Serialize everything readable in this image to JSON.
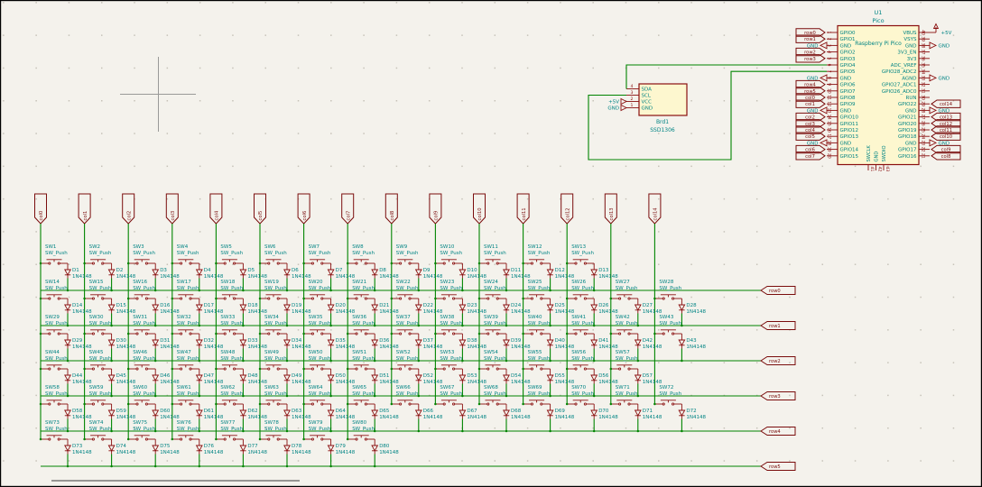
{
  "colors": {
    "wire": "#008400",
    "symbol_outline": "#8a0f0f",
    "field_text": "#008484",
    "label_text": "#7a0d0d",
    "body_fill": "#fdf7cf",
    "background": "#f4f2ec",
    "grid_dot": "#c6c2b8"
  },
  "pico": {
    "reference": "U1",
    "value": "Pico",
    "name": "Raspberry Pi Pico",
    "left_pins": [
      {
        "num": "1",
        "name": "GPIO0",
        "label": "row0",
        "ltype": "global"
      },
      {
        "num": "2",
        "name": "GPIO1",
        "label": "row1",
        "ltype": "global"
      },
      {
        "num": "3",
        "name": "GND",
        "label": "GND",
        "ltype": "power"
      },
      {
        "num": "4",
        "name": "GPIO2",
        "label": "row2",
        "ltype": "global"
      },
      {
        "num": "5",
        "name": "GPIO3",
        "label": "row3",
        "ltype": "global"
      },
      {
        "num": "6",
        "name": "GPIO4",
        "ltype": "wire"
      },
      {
        "num": "7",
        "name": "GPIO5",
        "ltype": "wire"
      },
      {
        "num": "8",
        "name": "GND",
        "label": "GND",
        "ltype": "power"
      },
      {
        "num": "9",
        "name": "GPIO6",
        "label": "row4",
        "ltype": "global"
      },
      {
        "num": "10",
        "name": "GPIO7",
        "label": "row5",
        "ltype": "global"
      },
      {
        "num": "11",
        "name": "GPIO8",
        "label": "col0",
        "ltype": "global"
      },
      {
        "num": "12",
        "name": "GPIO9",
        "label": "col1",
        "ltype": "global"
      },
      {
        "num": "13",
        "name": "GND",
        "label": "GND",
        "ltype": "power"
      },
      {
        "num": "14",
        "name": "GPIO10",
        "label": "col2",
        "ltype": "global"
      },
      {
        "num": "15",
        "name": "GPIO11",
        "label": "col3",
        "ltype": "global"
      },
      {
        "num": "16",
        "name": "GPIO12",
        "label": "col4",
        "ltype": "global"
      },
      {
        "num": "17",
        "name": "GPIO13",
        "label": "col5",
        "ltype": "global"
      },
      {
        "num": "18",
        "name": "GND",
        "label": "GND",
        "ltype": "power"
      },
      {
        "num": "19",
        "name": "GPIO14",
        "label": "col6",
        "ltype": "global"
      },
      {
        "num": "20",
        "name": "GPIO15",
        "label": "col7",
        "ltype": "global"
      }
    ],
    "right_pins": [
      {
        "num": "40",
        "name": "VBUS",
        "label": "+5V",
        "ltype": "power5v"
      },
      {
        "num": "39",
        "name": "VSYS",
        "ltype": "none"
      },
      {
        "num": "38",
        "name": "GND",
        "label": "GND",
        "ltype": "power"
      },
      {
        "num": "37",
        "name": "3V3_EN",
        "ltype": "none"
      },
      {
        "num": "36",
        "name": "3V3",
        "ltype": "none"
      },
      {
        "num": "35",
        "name": "ADC_VREF",
        "ltype": "none"
      },
      {
        "num": "34",
        "name": "GPIO28_ADC2",
        "ltype": "none"
      },
      {
        "num": "33",
        "name": "AGND",
        "label": "GND",
        "ltype": "power"
      },
      {
        "num": "32",
        "name": "GPIO27_ADC1",
        "ltype": "none"
      },
      {
        "num": "31",
        "name": "GPIO26_ADC0",
        "ltype": "none"
      },
      {
        "num": "30",
        "name": "RUN",
        "ltype": "none"
      },
      {
        "num": "29",
        "name": "GPIO22",
        "label": "col14",
        "ltype": "global"
      },
      {
        "num": "28",
        "name": "GND",
        "label": "GND",
        "ltype": "power"
      },
      {
        "num": "27",
        "name": "GPIO21",
        "label": "col13",
        "ltype": "global"
      },
      {
        "num": "26",
        "name": "GPIO20",
        "label": "col12",
        "ltype": "global"
      },
      {
        "num": "25",
        "name": "GPIO19",
        "label": "col11",
        "ltype": "global"
      },
      {
        "num": "24",
        "name": "GPIO18",
        "label": "col10",
        "ltype": "global"
      },
      {
        "num": "23",
        "name": "GND",
        "label": "GND",
        "ltype": "power"
      },
      {
        "num": "22",
        "name": "GPIO17",
        "label": "col9",
        "ltype": "global"
      },
      {
        "num": "21",
        "name": "GPIO16",
        "label": "col8",
        "ltype": "global"
      }
    ],
    "bottom_pins": [
      {
        "num": "41",
        "name": "SWCLK"
      },
      {
        "num": "42",
        "name": "GND"
      },
      {
        "num": "43",
        "name": "SWDIO"
      }
    ]
  },
  "oled": {
    "reference": "Brd1",
    "value": "SSD1306",
    "pins": [
      {
        "num": "4",
        "name": "SDA"
      },
      {
        "num": "3",
        "name": "SCL"
      },
      {
        "num": "2",
        "name": "VCC",
        "label": "+5V"
      },
      {
        "num": "1",
        "name": "GND",
        "label": "GND"
      }
    ]
  },
  "matrix": {
    "column_labels": [
      "col0",
      "col1",
      "col2",
      "col3",
      "col4",
      "col5",
      "col6",
      "col7",
      "col8",
      "col9",
      "col10",
      "col11",
      "col12",
      "col13",
      "col14"
    ],
    "switch_type": "SW_Push",
    "diode_type": "1N4148",
    "rows": [
      {
        "label": "row0",
        "cols_start": 0,
        "switches": [
          "SW1",
          "SW2",
          "SW3",
          "SW4",
          "SW5",
          "SW6",
          "SW7",
          "SW8",
          "SW9",
          "SW10",
          "SW11",
          "SW12",
          "SW13"
        ],
        "diodes": [
          "D1",
          "D2",
          "D3",
          "D4",
          "D5",
          "D6",
          "D7",
          "D8",
          "D9",
          "D10",
          "D11",
          "D12",
          "D13"
        ]
      },
      {
        "label": "row1",
        "cols_start": 0,
        "switches": [
          "SW14",
          "SW15",
          "SW16",
          "SW17",
          "SW18",
          "SW19",
          "SW20",
          "SW21",
          "SW22",
          "SW23",
          "SW24",
          "SW25",
          "SW26",
          "SW27",
          "SW28"
        ],
        "diodes": [
          "D14",
          "D15",
          "D16",
          "D17",
          "D18",
          "D19",
          "D20",
          "D21",
          "D22",
          "D23",
          "D24",
          "D25",
          "D26",
          "D27",
          "D28"
        ]
      },
      {
        "label": "row2",
        "cols_start": 0,
        "switches": [
          "SW29",
          "SW30",
          "SW31",
          "SW32",
          "SW33",
          "SW34",
          "SW35",
          "SW36",
          "SW37",
          "SW38",
          "SW39",
          "SW40",
          "SW41",
          "SW42",
          "SW43"
        ],
        "diodes": [
          "D29",
          "D30",
          "D31",
          "D32",
          "D33",
          "D34",
          "D35",
          "D36",
          "D37",
          "D38",
          "D39",
          "D40",
          "D41",
          "D42",
          "D43"
        ]
      },
      {
        "label": "row3",
        "cols_start": 0,
        "switches": [
          "SW44",
          "SW45",
          "SW46",
          "SW47",
          "SW48",
          "SW49",
          "SW50",
          "SW51",
          "SW52",
          "SW53",
          "SW54",
          "SW55",
          "SW56",
          "SW57"
        ],
        "diodes": [
          "D44",
          "D45",
          "D46",
          "D47",
          "D48",
          "D49",
          "D50",
          "D51",
          "D52",
          "D53",
          "D54",
          "D55",
          "D56",
          "D57"
        ]
      },
      {
        "label": "row4",
        "cols_start": 0,
        "switches": [
          "SW58",
          "SW59",
          "SW60",
          "SW61",
          "SW62",
          "SW63",
          "SW64",
          "SW65",
          "SW66",
          "SW67",
          "SW68",
          "SW69",
          "SW70",
          "SW71",
          "SW72"
        ],
        "diodes": [
          "D58",
          "D59",
          "D60",
          "D61",
          "D62",
          "D63",
          "D64",
          "D65",
          "D66",
          "D67",
          "D68",
          "D69",
          "D70",
          "D71",
          "D72"
        ]
      },
      {
        "label": "row5",
        "cols_start": 0,
        "switches": [
          "SW73",
          "SW74",
          "SW75",
          "SW76",
          "SW77",
          "SW78",
          "SW79",
          "SW80"
        ],
        "diodes": [
          "D73",
          "D74",
          "D75",
          "D76",
          "D77",
          "D78",
          "D79",
          "D80"
        ]
      }
    ]
  }
}
